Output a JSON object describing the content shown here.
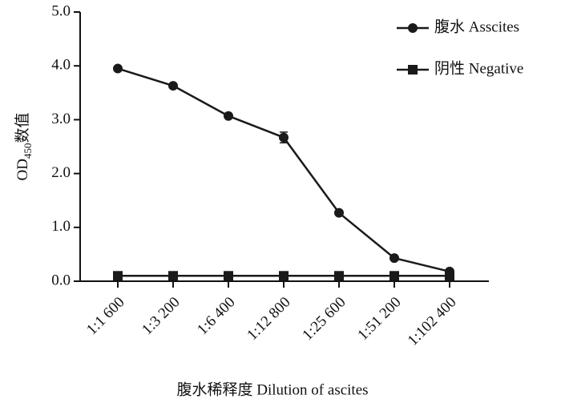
{
  "chart_data": {
    "type": "line",
    "categories": [
      "1:1 600",
      "1:3 200",
      "1:6 400",
      "1:12 800",
      "1:25 600",
      "1:51 200",
      "1:102 400"
    ],
    "series": [
      {
        "name": "腹水 Asscites",
        "color": "#1a1a1a",
        "marker": "circle",
        "values": [
          3.95,
          3.63,
          3.07,
          2.67,
          1.27,
          0.43,
          0.18
        ],
        "errors": [
          0.03,
          0.03,
          0.03,
          0.1,
          0.03,
          0.03,
          0.03
        ]
      },
      {
        "name": "阴性 Negative",
        "color": "#1a1a1a",
        "marker": "square",
        "values": [
          0.1,
          0.1,
          0.1,
          0.1,
          0.1,
          0.1,
          0.1
        ]
      }
    ],
    "ylim": [
      0,
      5
    ],
    "yticks": [
      {
        "value": 0,
        "label": "0.0"
      },
      {
        "value": 1,
        "label": "1.0"
      },
      {
        "value": 2,
        "label": "2.0"
      },
      {
        "value": 3,
        "label": "3.0"
      },
      {
        "value": 4,
        "label": "4.0"
      },
      {
        "value": 5,
        "label": "5.0"
      }
    ],
    "x_label": "腹水稀释度 Dilution of ascites",
    "y_label": {
      "main": "OD",
      "sub": "450",
      "rest": "数值"
    },
    "legend": "top-right",
    "grid": false
  }
}
